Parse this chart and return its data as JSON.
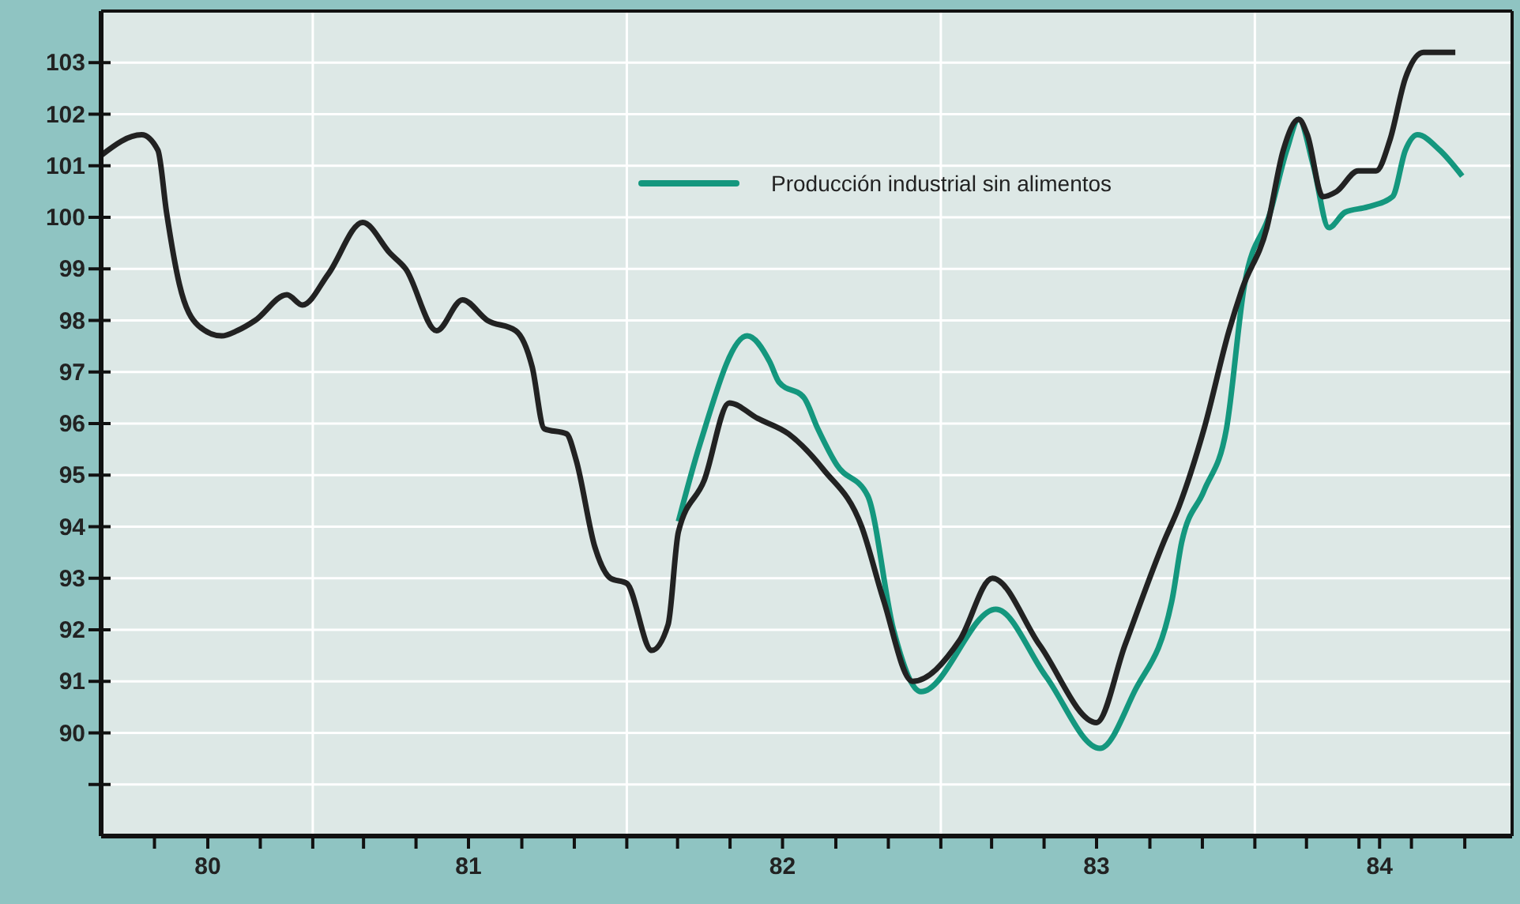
{
  "chart_data": {
    "type": "line",
    "xlim": [
      "1980-04-30",
      "1984-10-26"
    ],
    "ylim": [
      88,
      104
    ],
    "xticks": [
      {
        "value": "1980-07-01",
        "label": null
      },
      {
        "value": "1980-09-01",
        "label": "80"
      },
      {
        "value": "1980-11-01",
        "label": null
      },
      {
        "value": "1981-01-01",
        "label": null
      },
      {
        "value": "1981-03-01",
        "label": null
      },
      {
        "value": "1981-05-01",
        "label": null
      },
      {
        "value": "1981-07-01",
        "label": "81"
      },
      {
        "value": "1981-09-01",
        "label": null
      },
      {
        "value": "1981-11-01",
        "label": null
      },
      {
        "value": "1982-01-01",
        "label": null
      },
      {
        "value": "1982-03-01",
        "label": null
      },
      {
        "value": "1982-05-01",
        "label": null
      },
      {
        "value": "1982-07-01",
        "label": "82"
      },
      {
        "value": "1982-09-01",
        "label": null
      },
      {
        "value": "1982-11-01",
        "label": null
      },
      {
        "value": "1983-01-01",
        "label": null
      },
      {
        "value": "1983-03-01",
        "label": null
      },
      {
        "value": "1983-05-01",
        "label": null
      },
      {
        "value": "1983-07-01",
        "label": "83"
      },
      {
        "value": "1983-09-01",
        "label": null
      },
      {
        "value": "1983-11-01",
        "label": null
      },
      {
        "value": "1984-01-01",
        "label": null
      },
      {
        "value": "1984-03-01",
        "label": null
      },
      {
        "value": "1984-05-01",
        "label": null
      },
      {
        "value": "1984-05-25",
        "label": "84"
      },
      {
        "value": "1984-07-01",
        "label": null
      },
      {
        "value": "1984-09-01",
        "label": null
      }
    ],
    "yticks": [
      {
        "value": 89,
        "label": null
      },
      90,
      91,
      92,
      93,
      94,
      95,
      96,
      97,
      98,
      99,
      100,
      101,
      102,
      103
    ],
    "grid": "y",
    "legend": "top right",
    "ref_lines": [
      {
        "axis": "x",
        "value": "1981-01-01",
        "color": "#ffffff"
      },
      {
        "axis": "x",
        "value": "1982-01-01",
        "color": "#ffffff"
      },
      {
        "axis": "x",
        "value": "1983-01-01",
        "color": "#ffffff"
      },
      {
        "axis": "x",
        "value": "1984-01-01",
        "color": "#ffffff"
      }
    ],
    "series": [
      {
        "name": "Producción industrial sin alimentos",
        "color": "#14977e",
        "x": [
          "1982-03-02",
          "1982-03-27",
          "1982-05-21",
          "1982-06-16",
          "1982-06-27",
          "1982-07-26",
          "1982-08-11",
          "1982-09-02",
          "1982-10-08",
          "1982-11-07",
          "1982-12-09",
          "1983-03-06",
          "1983-05-03",
          "1983-07-05",
          "1983-08-14",
          "1983-09-27",
          "1983-10-08",
          "1983-11-03",
          "1983-11-29",
          "1983-12-20",
          "1984-01-19",
          "1984-02-07",
          "1984-02-21",
          "1984-03-09",
          "1984-03-27",
          "1984-04-15",
          "1984-05-11",
          "1984-06-09",
          "1984-06-24",
          "1984-07-08",
          "1984-08-03",
          "1984-08-29"
        ],
        "values": [
          94.1,
          95.6,
          97.7,
          97.2,
          96.8,
          96.5,
          95.9,
          95.2,
          94.6,
          92.0,
          90.8,
          92.4,
          91.1,
          89.7,
          90.8,
          92.6,
          93.7,
          94.7,
          95.9,
          98.7,
          100.1,
          101.3,
          101.9,
          101.0,
          99.8,
          100.1,
          100.2,
          100.4,
          101.3,
          101.6,
          101.3,
          100.8
        ]
      },
      {
        "color": "#222222",
        "x": [
          "1980-04-30",
          "1980-06-16",
          "1980-07-05",
          "1980-07-15",
          "1980-07-30",
          "1980-08-21",
          "1980-09-17",
          "1980-10-05",
          "1980-10-26",
          "1980-12-02",
          "1980-12-20",
          "1981-01-19",
          "1981-02-28",
          "1981-04-01",
          "1981-04-19",
          "1981-05-25",
          "1981-06-24",
          "1981-07-23",
          "1981-08-25",
          "1981-09-13",
          "1981-09-27",
          "1981-10-23",
          "1981-11-03",
          "1981-11-25",
          "1981-12-13",
          "1982-01-01",
          "1982-01-30",
          "1982-02-18",
          "1982-03-02",
          "1982-04-01",
          "1982-04-30",
          "1982-06-02",
          "1982-07-08",
          "1982-08-18",
          "1982-10-01",
          "1982-10-26",
          "1982-11-29",
          "1983-01-23",
          "1983-03-02",
          "1983-04-26",
          "1983-07-01",
          "1983-08-03",
          "1983-09-17",
          "1983-10-05",
          "1983-11-03",
          "1983-12-02",
          "1983-12-17",
          "1984-01-15",
          "1984-02-03",
          "1984-02-21",
          "1984-03-02",
          "1984-03-20",
          "1984-04-05",
          "1984-04-30",
          "1984-05-21",
          "1984-06-06",
          "1984-06-24",
          "1984-07-15",
          "1984-08-21"
        ],
        "values": [
          101.2,
          101.6,
          101.3,
          100.1,
          98.7,
          97.9,
          97.7,
          97.8,
          98.0,
          98.5,
          98.3,
          98.9,
          99.9,
          99.3,
          99.0,
          97.8,
          98.4,
          98.0,
          97.8,
          97.1,
          95.9,
          95.8,
          95.3,
          93.6,
          93.0,
          92.9,
          91.6,
          92.1,
          93.9,
          94.9,
          96.4,
          96.1,
          95.8,
          95.1,
          94.0,
          92.6,
          91.0,
          91.8,
          93.0,
          91.7,
          90.2,
          91.7,
          93.7,
          94.4,
          95.9,
          97.8,
          98.6,
          99.8,
          101.3,
          101.9,
          101.6,
          100.4,
          100.5,
          100.9,
          100.9,
          101.5,
          102.7,
          103.2,
          103.2
        ]
      }
    ]
  }
}
